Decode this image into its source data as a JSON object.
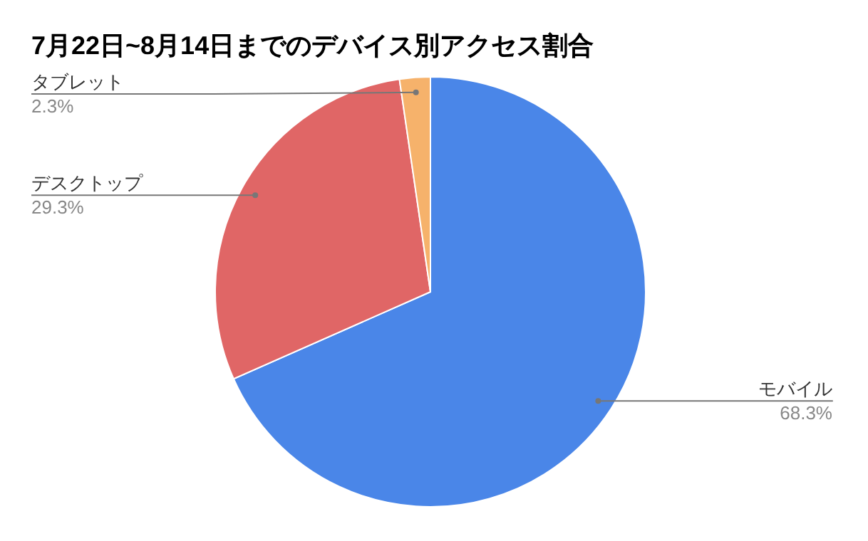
{
  "chart_data": {
    "type": "pie",
    "title": "7月22日~8月14日までのデバイス別アクセス割合",
    "categories": [
      "モバイル",
      "デスクトップ",
      "タブレット"
    ],
    "values": [
      68.3,
      29.3,
      2.3
    ],
    "colors": [
      "#4a86e8",
      "#e06666",
      "#f6b26b"
    ],
    "value_labels": [
      "68.3%",
      "29.3%",
      "2.3%"
    ]
  }
}
